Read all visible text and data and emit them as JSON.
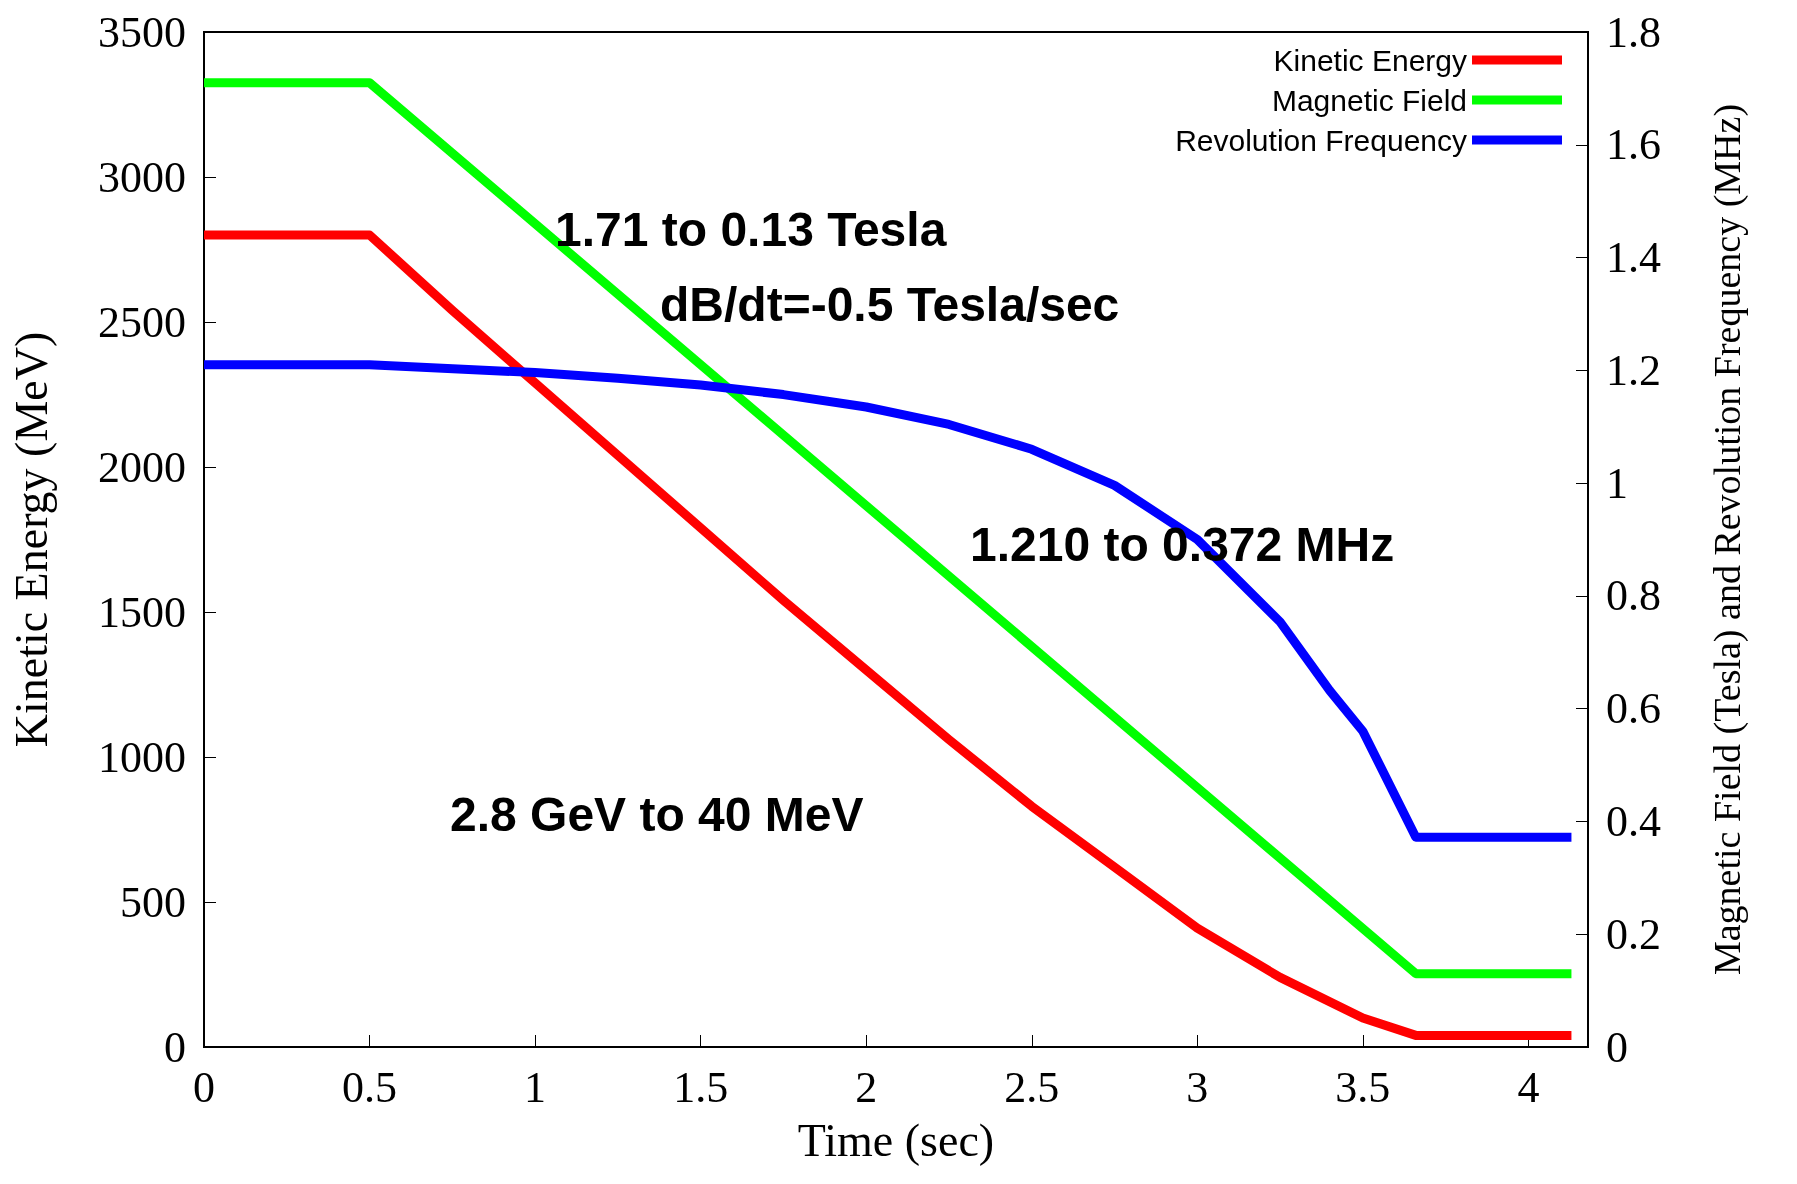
{
  "chart_data": {
    "type": "line",
    "xlabel": "Time (sec)",
    "ylabel": "Kinetic Energy (MeV)",
    "y2label": "Magnetic Field (Tesla) and Revolution Frequency (MHz)",
    "xlim": [
      0,
      4.18
    ],
    "xticks": [
      0,
      0.5,
      1,
      1.5,
      2,
      2.5,
      3,
      3.5,
      4
    ],
    "ylim": [
      0,
      3500
    ],
    "yticks": [
      0,
      500,
      1000,
      1500,
      2000,
      2500,
      3000,
      3500
    ],
    "y2lim": [
      0,
      1.8
    ],
    "y2ticks": [
      0,
      0.2,
      0.4,
      0.6,
      0.8,
      1,
      1.2,
      1.4,
      1.6,
      1.8
    ],
    "legend": "top right",
    "grid": false,
    "marker": "none",
    "line_style": "solid",
    "annotations": [
      "1.71 to 0.13 Tesla",
      "dB/dt=-0.5 Tesla/sec",
      "1.210 to 0.372 MHz",
      "2.8 GeV to 40 MeV"
    ],
    "series": [
      {
        "name": "Kinetic Energy",
        "color": "#ff0000",
        "x": [
          0,
          0.5,
          0.75,
          1,
          1.25,
          1.5,
          1.75,
          2,
          2.25,
          2.5,
          2.75,
          3,
          3.25,
          3.5,
          3.66,
          4.13
        ],
        "values": [
          2800,
          2800,
          2540,
          2290,
          2040,
          1790,
          1540,
          1300,
          1060,
          830,
          620,
          410,
          240,
          100,
          40,
          40
        ]
      },
      {
        "name": "Magnetic Field",
        "color": "#00ff00",
        "axis": "y2",
        "x": [
          0,
          0.5,
          3.66,
          4.13
        ],
        "values": [
          1.71,
          1.71,
          0.13,
          0.13
        ]
      },
      {
        "name": "Revolution Frequency",
        "color": "#0000ff",
        "axis": "y2",
        "x": [
          0,
          0.5,
          1,
          1.25,
          1.5,
          1.75,
          2,
          2.25,
          2.5,
          2.75,
          3,
          3.25,
          3.4,
          3.5,
          3.66,
          4.13
        ],
        "values": [
          1.21,
          1.21,
          1.196,
          1.186,
          1.174,
          1.157,
          1.135,
          1.104,
          1.06,
          0.996,
          0.9,
          0.754,
          0.632,
          0.56,
          0.372,
          0.372
        ]
      }
    ]
  }
}
